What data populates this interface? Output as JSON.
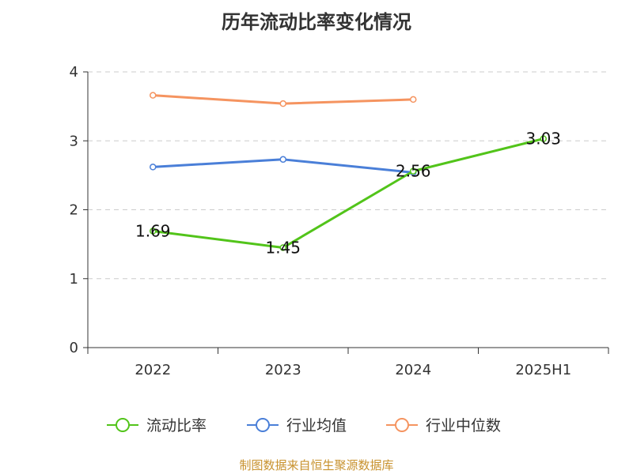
{
  "title": "历年流动比率变化情况",
  "source": "制图数据来自恒生聚源数据库",
  "chart_data": {
    "type": "line",
    "title": "历年流动比率变化情况",
    "xlabel": "",
    "ylabel": "",
    "categories": [
      "2022",
      "2023",
      "2024",
      "2025H1"
    ],
    "ylim": [
      0,
      4
    ],
    "yticks": [
      0,
      1,
      2,
      3,
      4
    ],
    "grid": true,
    "legend_position": "bottom",
    "series": [
      {
        "name": "流动比率",
        "color": "#52c41a",
        "values": [
          1.69,
          1.45,
          2.56,
          3.03
        ],
        "labels": [
          "1.69",
          "1.45",
          "2.56",
          "3.03"
        ]
      },
      {
        "name": "行业均值",
        "color": "#4a7fd8",
        "values": [
          2.62,
          2.73,
          2.54,
          null
        ]
      },
      {
        "name": "行业中位数",
        "color": "#f59460",
        "values": [
          3.66,
          3.54,
          3.6,
          null
        ]
      }
    ]
  }
}
